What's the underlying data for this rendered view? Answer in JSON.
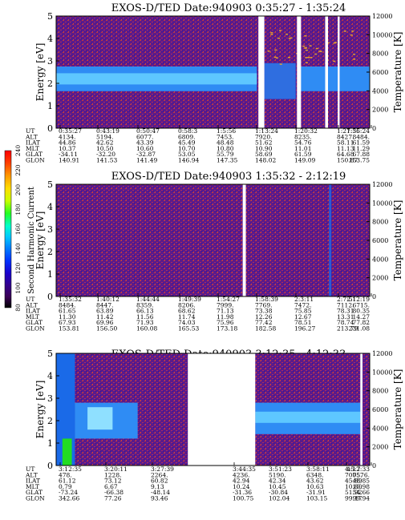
{
  "chart_data": [
    {
      "type": "heatmap",
      "title": "EXOS-D/TED   Date:940903  0:35:27 - 1:35:24",
      "ylabel": "Energy [eV]",
      "ylabel_right": "Temperature [K]",
      "ylim": [
        0,
        5
      ],
      "yticks": [
        "0",
        "1",
        "2",
        "3",
        "4",
        "5"
      ],
      "ylim_right": [
        0,
        12000
      ],
      "yticks_right": [
        "0",
        "2000",
        "4000",
        "6000",
        "8000",
        "10000",
        "12000"
      ],
      "rows": [
        {
          "label": "UT",
          "values": [
            "0:35:27",
            "0:43:19",
            "0:50:47",
            "0:58:3",
            "1:5:56",
            "1:13:24",
            "1:20:32",
            "1:27:56",
            "1:35:24"
          ]
        },
        {
          "label": "ALT",
          "values": [
            "4134.",
            "5194.",
            "6077.",
            "6809.",
            "7453.",
            "7920.",
            "8235.",
            "8427.",
            "8484."
          ]
        },
        {
          "label": "ILAT",
          "values": [
            "44.86",
            "42.62",
            "43.39",
            "45.49",
            "48.48",
            "51.62",
            "54.76",
            "58.11",
            "61.59"
          ]
        },
        {
          "label": "MLT",
          "values": [
            "10.37",
            "10.50",
            "10.60",
            "10.70",
            "10.80",
            "10.90",
            "11.01",
            "11.13",
            "11.29"
          ]
        },
        {
          "label": "GLAT",
          "values": [
            "-34.11",
            "-32.20",
            "-32.87",
            "53.05",
            "55.79",
            "58.69",
            "61.59",
            "64.68",
            "67.88"
          ]
        },
        {
          "label": "GLON",
          "values": [
            "140.91",
            "141.53",
            "141.49",
            "146.94",
            "147.35",
            "148.02",
            "149.09",
            "150.87",
            "153.75"
          ]
        }
      ],
      "gaps": [
        [
          0.645,
          0.664
        ],
        [
          0.768,
          0.781
        ],
        [
          0.858,
          0.867
        ],
        [
          0.898,
          0.904
        ]
      ],
      "band": {
        "center_ev": 2.2,
        "width_ev": 0.8
      }
    },
    {
      "type": "heatmap",
      "title": "EXOS-D/TED   Date:940903  1:35:32 - 2:12:19",
      "ylabel": "Energy [eV]",
      "ylabel_right": "Temperature [K]",
      "ylim": [
        0,
        5
      ],
      "yticks": [
        "0",
        "1",
        "2",
        "3",
        "4",
        "5"
      ],
      "ylim_right": [
        0,
        12000
      ],
      "yticks_right": [
        "0",
        "2000",
        "4000",
        "6000",
        "8000",
        "10000",
        "12000"
      ],
      "rows": [
        {
          "label": "UT",
          "values": [
            "1:35:32",
            "1:40:12",
            "1:44:44",
            "1:49:39",
            "1:54:27",
            "1:58:39",
            "2:3:11",
            "2:7:51",
            "2:12:19"
          ]
        },
        {
          "label": "ALT",
          "values": [
            "8484.",
            "8447.",
            "8359.",
            "8206.",
            "7999.",
            "7769.",
            "7472.",
            "7112.",
            "6715."
          ]
        },
        {
          "label": "ILAT",
          "values": [
            "61.65",
            "63.89",
            "66.13",
            "68.62",
            "71.13",
            "73.38",
            "75.85",
            "78.31",
            "80.35"
          ]
        },
        {
          "label": "MLT",
          "values": [
            "11.30",
            "11.42",
            "11.56",
            "11.74",
            "11.98",
            "12.26",
            "12.67",
            "13.31",
            "14.27"
          ]
        },
        {
          "label": "GLAT",
          "values": [
            "67.93",
            "69.96",
            "71.93",
            "74.03",
            "75.96",
            "77.42",
            "78.51",
            "78.74",
            "77.82"
          ]
        },
        {
          "label": "GLON",
          "values": [
            "153.81",
            "156.50",
            "160.08",
            "165.53",
            "173.18",
            "182.58",
            "196.27",
            "213.79",
            "231.08"
          ]
        }
      ],
      "gaps": [
        [
          0.595,
          0.605
        ]
      ]
    },
    {
      "type": "heatmap",
      "title": "EXOS-D/TED   Date:940903  3:12:35 - 4:12:33",
      "ylabel": "Energy [eV]",
      "ylabel_right": "Temperature [K]",
      "ylim": [
        0,
        5
      ],
      "yticks": [
        "0",
        "1",
        "2",
        "3",
        "4",
        "5"
      ],
      "ylim_right": [
        0,
        12000
      ],
      "yticks_right": [
        "0",
        "2000",
        "4000",
        "6000",
        "8000",
        "10000",
        "12000"
      ],
      "rows": [
        {
          "label": "UT",
          "values": [
            "3:12:35",
            "3:20:11",
            "3:27:39",
            "3:44:35",
            "3:51:23",
            "3:58:11",
            "4:5:7",
            "4:12:33"
          ]
        },
        {
          "label": "ALT",
          "values": [
            "478.",
            "1228.",
            "2264.",
            "4236.",
            "5190.",
            "6348.",
            "7005.",
            "7576."
          ]
        },
        {
          "label": "ILAT",
          "values": [
            "61.12",
            "73.12",
            "60.82",
            "42.94",
            "42.34",
            "43.62",
            "45.89",
            "48.85"
          ]
        },
        {
          "label": "MLT",
          "values": [
            "0.79",
            "6.67",
            "9.13",
            "10.24",
            "10.45",
            "10.63",
            "10.80",
            "10.98"
          ]
        },
        {
          "label": "GLAT",
          "values": [
            "-73.24",
            "-66.38",
            "-48.14",
            "-31.36",
            "-30.84",
            "-31.91",
            "51.92",
            "54.66"
          ]
        },
        {
          "label": "GLON",
          "values": [
            "342.66",
            "77.26",
            "93.46",
            "100.75",
            "102.04",
            "103.15",
            "99.17",
            "99.94"
          ]
        }
      ],
      "gaps": [
        [
          0.42,
          0.635
        ],
        [
          0.97,
          0.977
        ]
      ]
    }
  ],
  "colorbar": {
    "title": "Second Harmonic Current",
    "ticks": [
      "240",
      "220",
      "200",
      "180",
      "160",
      "140",
      "120",
      "100",
      "80"
    ],
    "colors": [
      "#ff0000",
      "#ff4000",
      "#ff9900",
      "#ffdd00",
      "#c8ff00",
      "#22ff22",
      "#00ffcc",
      "#00c8ff",
      "#0080ff",
      "#0033ff",
      "#1a00cc",
      "#33008a",
      "#3a0055",
      "#000000"
    ]
  },
  "colors": {
    "background": "#5a1a8c",
    "band": "#2f8cf4",
    "band_core": "#5ec7ff",
    "noise_red": "#d04040",
    "gap": "#ffffff"
  }
}
